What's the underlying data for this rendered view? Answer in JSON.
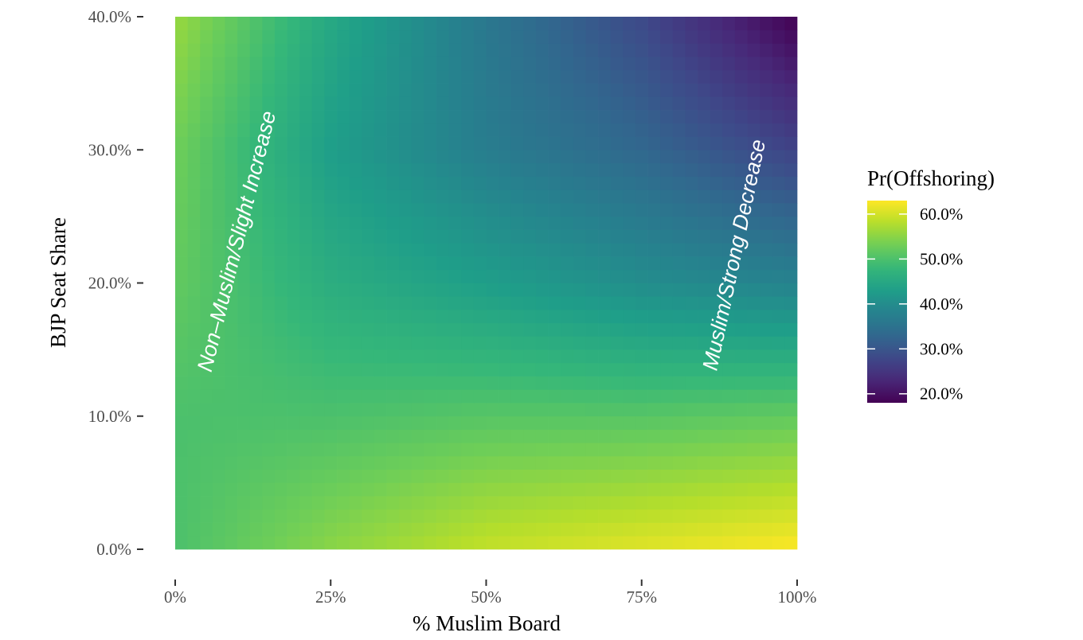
{
  "chart_data": {
    "type": "heatmap",
    "xlabel": "% Muslim Board",
    "ylabel": "BJP Seat Share",
    "xlim": [
      0,
      100
    ],
    "ylim": [
      0,
      40
    ],
    "x_ticks": [
      {
        "value": 0,
        "label": "0%"
      },
      {
        "value": 25,
        "label": "25%"
      },
      {
        "value": 50,
        "label": "50%"
      },
      {
        "value": 75,
        "label": "75%"
      },
      {
        "value": 100,
        "label": "100%"
      }
    ],
    "y_ticks": [
      {
        "value": 0,
        "label": "0.0%"
      },
      {
        "value": 10,
        "label": "10.0%"
      },
      {
        "value": 20,
        "label": "20.0%"
      },
      {
        "value": 30,
        "label": "30.0%"
      },
      {
        "value": 40,
        "label": "40.0%"
      }
    ],
    "legend": {
      "title": "Pr(Offshoring)",
      "placement": "right",
      "limits": [
        18,
        63
      ],
      "ticks": [
        {
          "value": 60,
          "label": "60.0%"
        },
        {
          "value": 50,
          "label": "50.0%"
        },
        {
          "value": 40,
          "label": "40.0%"
        },
        {
          "value": 30,
          "label": "30.0%"
        },
        {
          "value": 20,
          "label": "20.0%"
        }
      ]
    },
    "colormap": "viridis",
    "x_grid": [
      0,
      25,
      50,
      75,
      100
    ],
    "y_grid": [
      0,
      10,
      20,
      30,
      40
    ],
    "z": [
      [
        50,
        55,
        59,
        61,
        63
      ],
      [
        50,
        50,
        51,
        51,
        52
      ],
      [
        52,
        46,
        43,
        40,
        38
      ],
      [
        53,
        43,
        37,
        33,
        27
      ],
      [
        56,
        45,
        36,
        28,
        18
      ]
    ],
    "annotations": [
      {
        "text": "Non–Muslim/Slight Increase",
        "x": 11,
        "y": 23,
        "angle": 76
      },
      {
        "text": "Muslim/Strong Decrease",
        "x": 91,
        "y": 22,
        "angle": 78
      }
    ]
  }
}
